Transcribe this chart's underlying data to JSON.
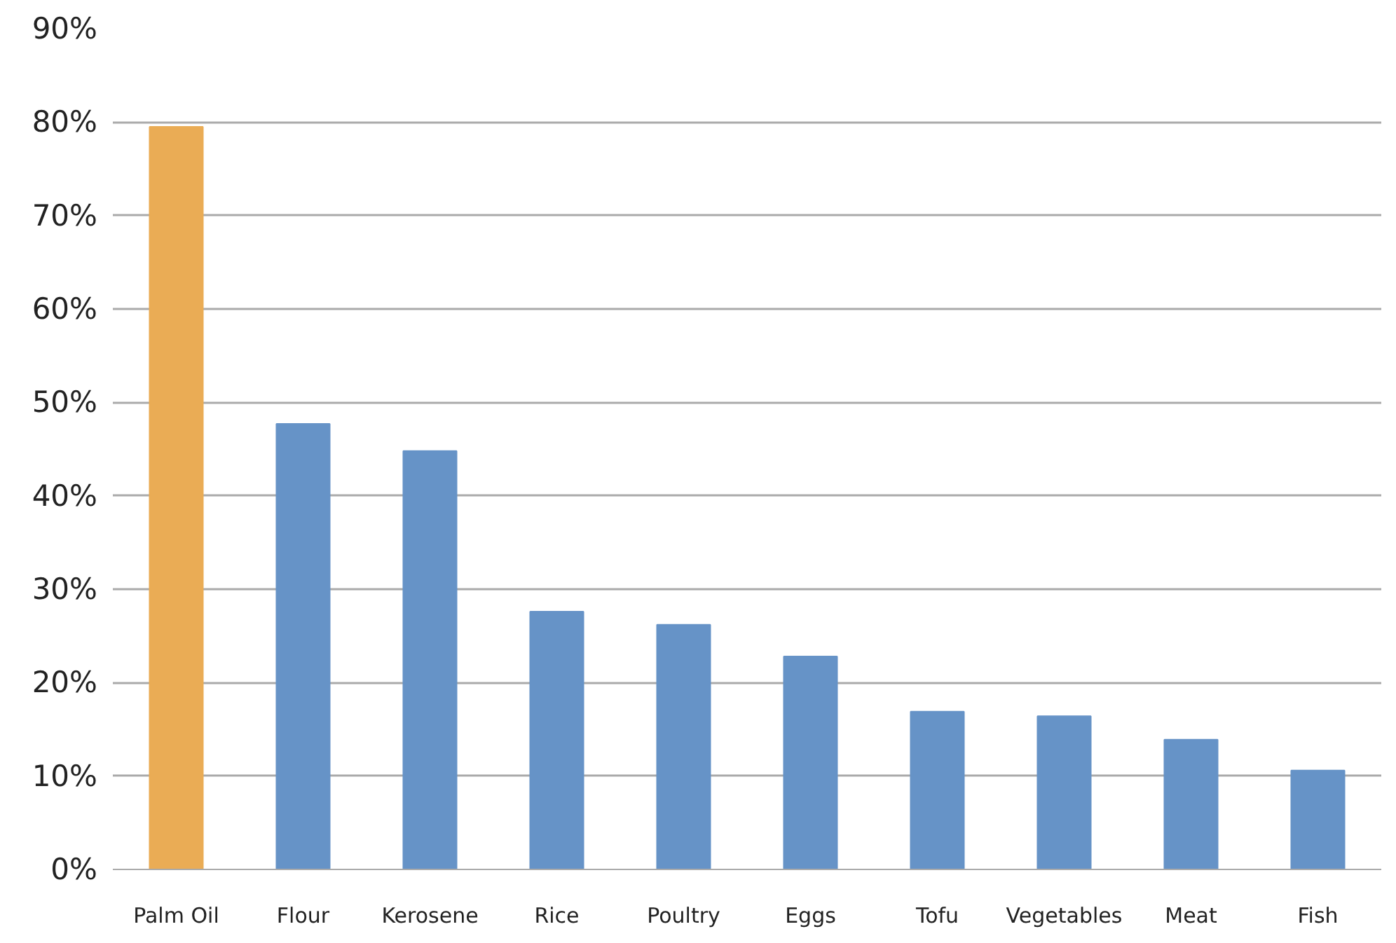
{
  "chart_data": {
    "type": "bar",
    "categories": [
      "Palm Oil",
      "Flour",
      "Kerosene",
      "Rice",
      "Poultry",
      "Eggs",
      "Tofu",
      "Vegetables",
      "Meat",
      "Fish"
    ],
    "values": [
      79.5,
      47.7,
      44.8,
      27.6,
      26.2,
      22.8,
      16.9,
      16.4,
      13.9,
      10.6
    ],
    "colors": [
      "#eaac55",
      "#6693c7",
      "#6693c7",
      "#6693c7",
      "#6693c7",
      "#6693c7",
      "#6693c7",
      "#6693c7",
      "#6693c7",
      "#6693c7"
    ],
    "ylim": [
      0,
      90
    ],
    "yticks": [
      {
        "value": 0,
        "label": "0%"
      },
      {
        "value": 10,
        "label": "10%"
      },
      {
        "value": 20,
        "label": "20%"
      },
      {
        "value": 30,
        "label": "30%"
      },
      {
        "value": 40,
        "label": "40%"
      },
      {
        "value": 50,
        "label": "50%"
      },
      {
        "value": 60,
        "label": "60%"
      },
      {
        "value": 70,
        "label": "70%"
      },
      {
        "value": 80,
        "label": "80%"
      },
      {
        "value": 90,
        "label": "90%"
      }
    ],
    "grid": "y"
  }
}
